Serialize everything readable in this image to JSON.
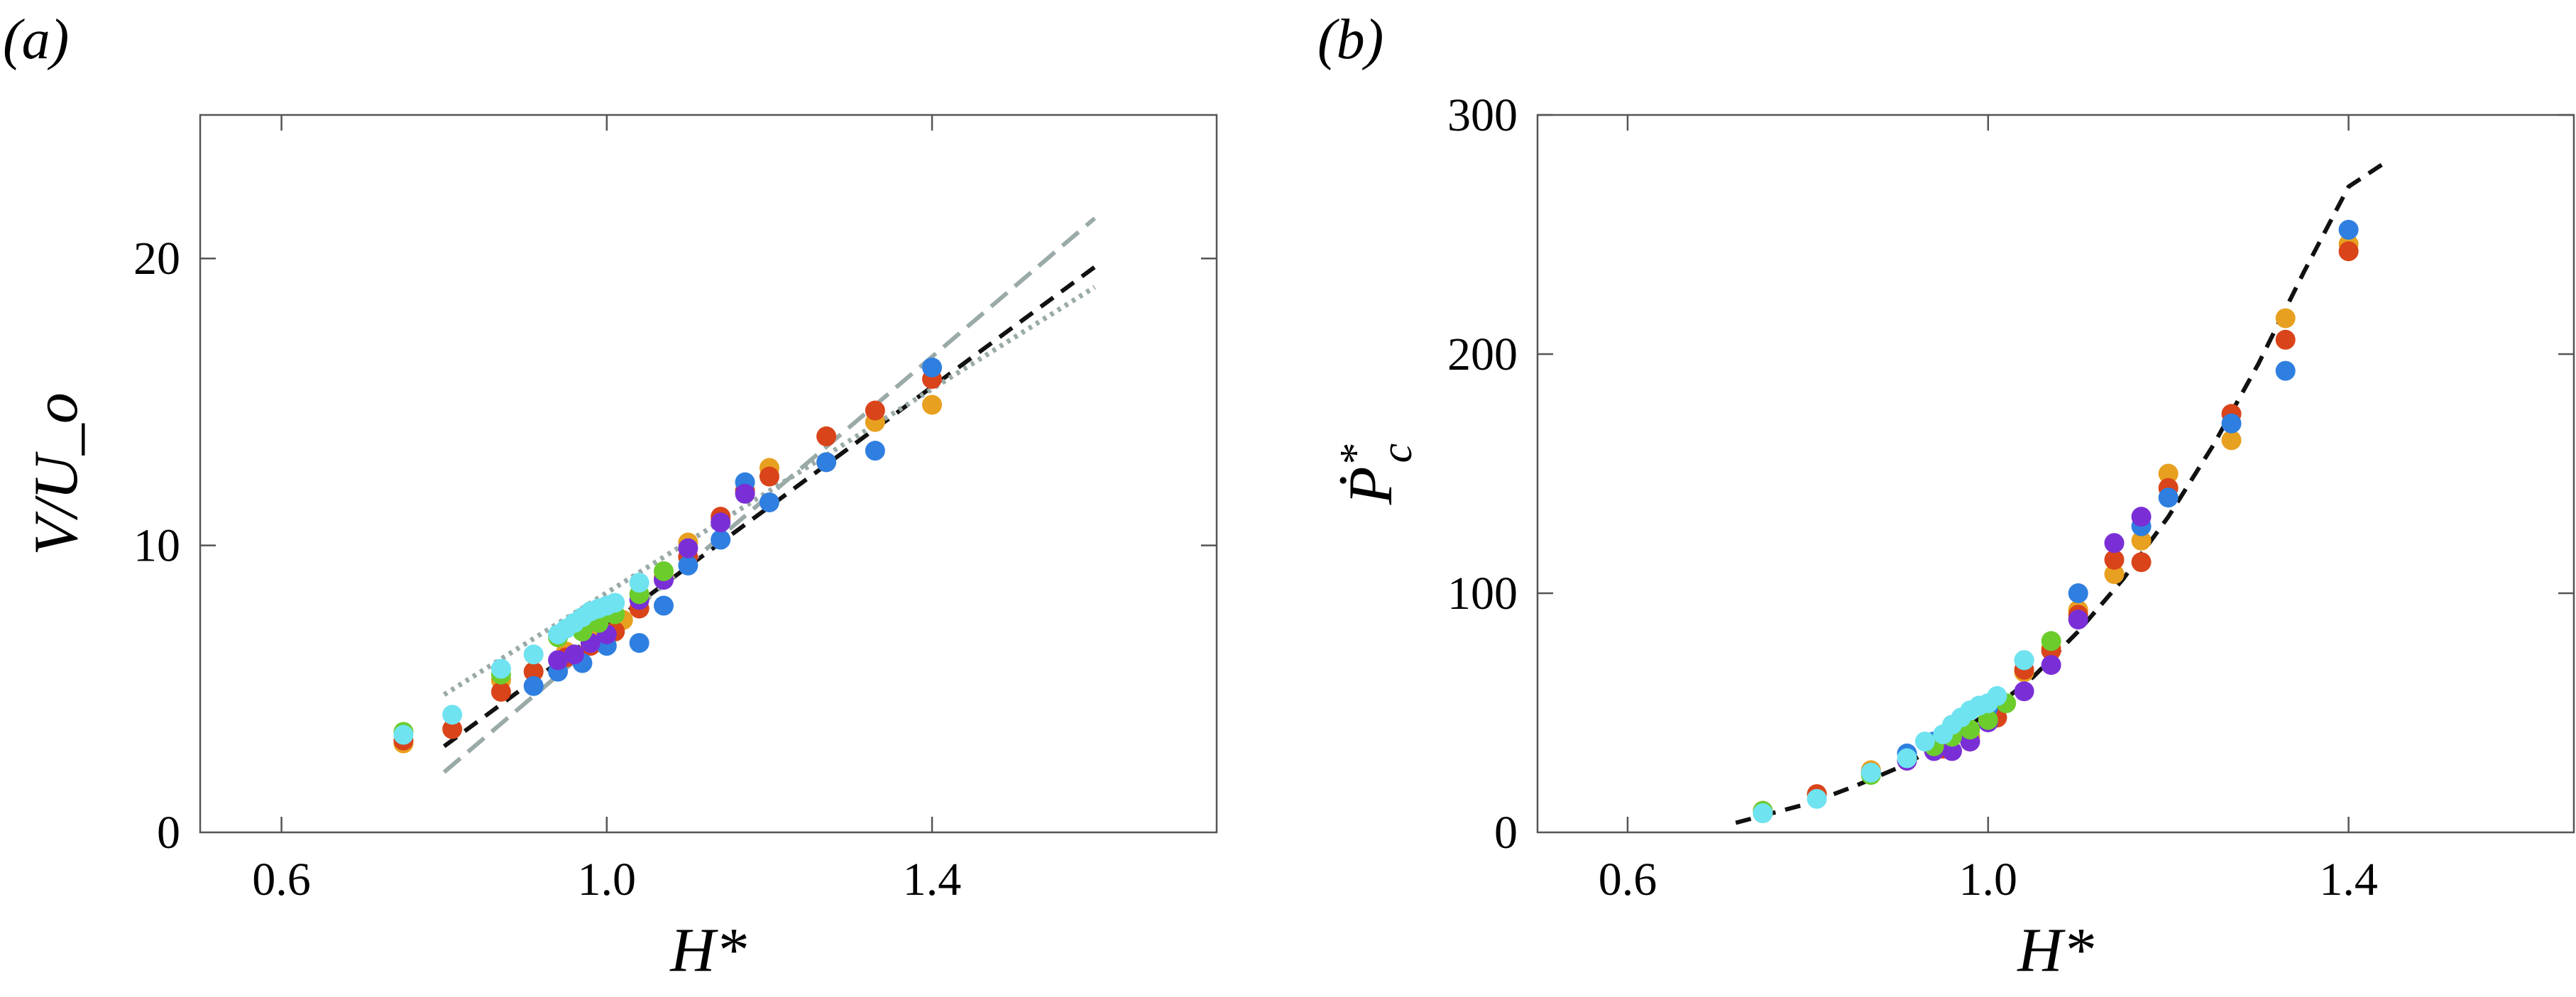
{
  "panels": [
    {
      "label": "(a)",
      "xlabel": "H*",
      "ylabel": "V/U_o"
    },
    {
      "label": "(b)",
      "xlabel": "H*",
      "ylabel": "Ṗ*c"
    }
  ],
  "colors": {
    "blue": "#2f7fe0",
    "red": "#d9441a",
    "orange": "#e8a020",
    "purple": "#7a2fd6",
    "green": "#6ccc2c",
    "cyan": "#6fe3f0",
    "gray": "#9aaaa8",
    "black": "#111111"
  },
  "chart_data": [
    {
      "type": "scatter",
      "panel": "(a)",
      "xlabel": "H*",
      "ylabel": "V/U_o",
      "xlim": [
        0.5,
        1.75
      ],
      "ylim": [
        0,
        25
      ],
      "xticks": [
        0.6,
        1.0,
        1.4
      ],
      "xtick_labels": [
        "0.6",
        "1.0",
        "1.4"
      ],
      "yticks": [
        0,
        10,
        20
      ],
      "ytick_labels": [
        "0",
        "10",
        "20"
      ],
      "grid": false,
      "series": [
        {
          "color": "orange",
          "points": [
            [
              0.75,
              3.1
            ],
            [
              0.87,
              5.3
            ],
            [
              0.95,
              6.3
            ],
            [
              0.98,
              6.8
            ],
            [
              1.02,
              7.4
            ],
            [
              1.07,
              8.9
            ],
            [
              1.1,
              10.1
            ],
            [
              1.14,
              10.9
            ],
            [
              1.2,
              12.7
            ],
            [
              1.27,
              12.9
            ],
            [
              1.33,
              14.3
            ],
            [
              1.4,
              14.9
            ]
          ]
        },
        {
          "color": "red",
          "points": [
            [
              0.75,
              3.2
            ],
            [
              0.81,
              3.6
            ],
            [
              0.87,
              4.9
            ],
            [
              0.91,
              5.6
            ],
            [
              0.95,
              6.1
            ],
            [
              0.98,
              6.5
            ],
            [
              1.01,
              7.0
            ],
            [
              1.04,
              7.8
            ],
            [
              1.1,
              9.6
            ],
            [
              1.14,
              11.0
            ],
            [
              1.17,
              11.9
            ],
            [
              1.2,
              12.4
            ],
            [
              1.27,
              13.8
            ],
            [
              1.33,
              14.7
            ],
            [
              1.4,
              15.8
            ]
          ]
        },
        {
          "color": "blue",
          "points": [
            [
              0.91,
              5.1
            ],
            [
              0.94,
              5.6
            ],
            [
              0.97,
              5.9
            ],
            [
              1.0,
              6.5
            ],
            [
              1.04,
              6.6
            ],
            [
              1.07,
              7.9
            ],
            [
              1.1,
              9.3
            ],
            [
              1.14,
              10.2
            ],
            [
              1.17,
              12.2
            ],
            [
              1.2,
              11.5
            ],
            [
              1.27,
              12.9
            ],
            [
              1.33,
              13.3
            ],
            [
              1.4,
              16.2
            ]
          ]
        },
        {
          "color": "purple",
          "points": [
            [
              0.94,
              6.0
            ],
            [
              0.96,
              6.2
            ],
            [
              0.98,
              6.6
            ],
            [
              1.0,
              6.9
            ],
            [
              1.04,
              8.1
            ],
            [
              1.07,
              8.8
            ],
            [
              1.1,
              9.9
            ],
            [
              1.14,
              10.8
            ],
            [
              1.17,
              11.8
            ]
          ]
        },
        {
          "color": "green",
          "points": [
            [
              0.75,
              3.5
            ],
            [
              0.87,
              5.5
            ],
            [
              0.94,
              6.8
            ],
            [
              0.97,
              7.0
            ],
            [
              0.99,
              7.3
            ],
            [
              1.01,
              7.6
            ],
            [
              1.04,
              8.3
            ],
            [
              1.07,
              9.1
            ]
          ]
        },
        {
          "color": "cyan",
          "points": [
            [
              0.75,
              3.4
            ],
            [
              0.81,
              4.1
            ],
            [
              0.87,
              5.7
            ],
            [
              0.91,
              6.2
            ],
            [
              0.94,
              6.9
            ],
            [
              0.95,
              7.1
            ],
            [
              0.96,
              7.3
            ],
            [
              0.97,
              7.5
            ],
            [
              0.98,
              7.7
            ],
            [
              0.99,
              7.8
            ],
            [
              1.0,
              7.9
            ],
            [
              1.01,
              8.0
            ],
            [
              1.04,
              8.7
            ]
          ]
        }
      ],
      "curves": [
        {
          "style": "dashed",
          "color": "black",
          "points": [
            [
              0.8,
              3.0
            ],
            [
              1.6,
              19.7
            ]
          ]
        },
        {
          "style": "dashed",
          "color": "gray",
          "points": [
            [
              0.8,
              2.1
            ],
            [
              1.6,
              21.4
            ]
          ]
        },
        {
          "style": "dotted",
          "color": "gray",
          "points": [
            [
              0.8,
              4.8
            ],
            [
              1.6,
              19.0
            ]
          ]
        }
      ]
    },
    {
      "type": "scatter",
      "panel": "(b)",
      "xlabel": "H*",
      "ylabel": "Ṗ*c",
      "xlim": [
        0.5,
        1.65
      ],
      "ylim": [
        0,
        300
      ],
      "xticks": [
        0.6,
        1.0,
        1.4
      ],
      "xtick_labels": [
        "0.6",
        "1.0",
        "1.4"
      ],
      "yticks": [
        0,
        100,
        200,
        300
      ],
      "ytick_labels": [
        "0",
        "100",
        "200",
        "300"
      ],
      "grid": false,
      "series": [
        {
          "color": "orange",
          "points": [
            [
              0.75,
              8
            ],
            [
              0.87,
              26
            ],
            [
              0.95,
              36
            ],
            [
              0.98,
              40
            ],
            [
              1.04,
              67
            ],
            [
              1.07,
              77
            ],
            [
              1.1,
              93
            ],
            [
              1.14,
              108
            ],
            [
              1.17,
              122
            ],
            [
              1.2,
              150
            ],
            [
              1.27,
              164
            ],
            [
              1.33,
              215
            ],
            [
              1.4,
              246
            ]
          ]
        },
        {
          "color": "red",
          "points": [
            [
              0.75,
              9
            ],
            [
              0.81,
              16
            ],
            [
              0.87,
              25
            ],
            [
              0.91,
              30
            ],
            [
              0.95,
              35
            ],
            [
              0.98,
              38
            ],
            [
              1.01,
              48
            ],
            [
              1.04,
              68
            ],
            [
              1.07,
              76
            ],
            [
              1.1,
              91
            ],
            [
              1.14,
              114
            ],
            [
              1.17,
              113
            ],
            [
              1.2,
              144
            ],
            [
              1.27,
              175
            ],
            [
              1.33,
              206
            ],
            [
              1.4,
              243
            ]
          ]
        },
        {
          "color": "blue",
          "points": [
            [
              0.87,
              25
            ],
            [
              0.91,
              33
            ],
            [
              0.94,
              38
            ],
            [
              0.97,
              42
            ],
            [
              1.0,
              52
            ],
            [
              1.04,
              72
            ],
            [
              1.1,
              100
            ],
            [
              1.17,
              128
            ],
            [
              1.2,
              140
            ],
            [
              1.27,
              171
            ],
            [
              1.33,
              193
            ],
            [
              1.4,
              252
            ]
          ]
        },
        {
          "color": "purple",
          "points": [
            [
              0.91,
              30
            ],
            [
              0.94,
              34
            ],
            [
              0.96,
              34
            ],
            [
              0.98,
              38
            ],
            [
              1.0,
              46
            ],
            [
              1.04,
              59
            ],
            [
              1.07,
              70
            ],
            [
              1.1,
              89
            ],
            [
              1.14,
              121
            ],
            [
              1.17,
              132
            ]
          ]
        },
        {
          "color": "green",
          "points": [
            [
              0.75,
              9
            ],
            [
              0.87,
              24
            ],
            [
              0.94,
              36
            ],
            [
              0.96,
              40
            ],
            [
              0.98,
              43
            ],
            [
              1.0,
              47
            ],
            [
              1.02,
              54
            ],
            [
              1.07,
              80
            ]
          ]
        },
        {
          "color": "cyan",
          "points": [
            [
              0.75,
              8
            ],
            [
              0.81,
              14
            ],
            [
              0.87,
              25
            ],
            [
              0.91,
              31
            ],
            [
              0.93,
              38
            ],
            [
              0.95,
              41
            ],
            [
              0.96,
              45
            ],
            [
              0.97,
              48
            ],
            [
              0.98,
              51
            ],
            [
              0.99,
              53
            ],
            [
              1.0,
              54
            ],
            [
              1.01,
              57
            ],
            [
              1.04,
              72
            ]
          ]
        }
      ],
      "curves": [
        {
          "style": "dashed",
          "color": "black",
          "points": [
            [
              0.72,
              4
            ],
            [
              0.75,
              7
            ],
            [
              0.8,
              12
            ],
            [
              0.85,
              19
            ],
            [
              0.9,
              27
            ],
            [
              0.95,
              37
            ],
            [
              1.0,
              50
            ],
            [
              1.05,
              65
            ],
            [
              1.1,
              84
            ],
            [
              1.15,
              106
            ],
            [
              1.2,
              132
            ],
            [
              1.25,
              162
            ],
            [
              1.3,
              196
            ],
            [
              1.35,
              234
            ],
            [
              1.4,
              270
            ],
            [
              1.44,
              280
            ]
          ]
        }
      ]
    }
  ]
}
